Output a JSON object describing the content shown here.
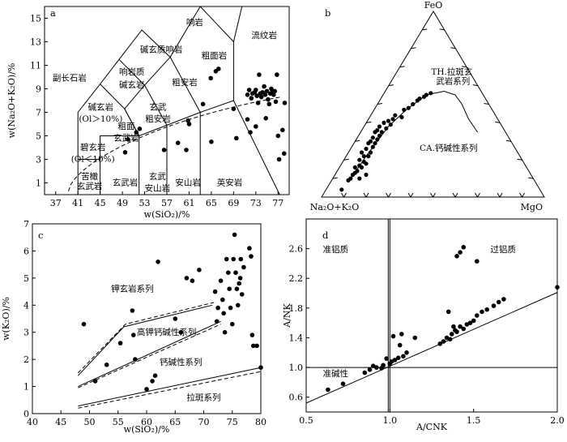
{
  "chart_data": [
    {
      "panel": "a",
      "type": "scatter",
      "xlabel": "w(SiO₂)/%",
      "ylabel": "w(Na₂O+K₂O)/%",
      "xlim": [
        35,
        79
      ],
      "ylim": [
        0,
        16
      ],
      "xticks": [
        "37",
        "41",
        "45",
        "49",
        "53",
        "57",
        "61",
        "65",
        "69",
        "73",
        "77"
      ],
      "yticks": [
        "1",
        "3",
        "5",
        "7",
        "9",
        "11",
        "13",
        "15"
      ],
      "fields": [
        {
          "label": "响岩",
          "x": 62,
          "y": 14.4
        },
        {
          "label": "碱玄质响岩",
          "x": 56,
          "y": 12.1
        },
        {
          "label": "粗面岩",
          "x": 65.5,
          "y": 11.6
        },
        {
          "label": "流纹岩",
          "x": 74.5,
          "y": 13.3
        },
        {
          "label": "副长石岩",
          "x": 39.5,
          "y": 9.7
        },
        {
          "label": "响岩质",
          "x": 50.7,
          "y": 10.2
        },
        {
          "label": "碱玄岩",
          "x": 50.7,
          "y": 9.1
        },
        {
          "label": "粗安岩",
          "x": 60.2,
          "y": 9.3
        },
        {
          "label": "碱玄岩",
          "x": 45.1,
          "y": 7.2
        },
        {
          "label": "(Ol＞10%)",
          "x": 45.1,
          "y": 6.2
        },
        {
          "label": "玄武",
          "x": 55.4,
          "y": 7.2
        },
        {
          "label": "粗安岩",
          "x": 55.4,
          "y": 6.2
        },
        {
          "label": "粗面",
          "x": 49.7,
          "y": 5.6
        },
        {
          "label": "玄武岩",
          "x": 49.7,
          "y": 4.6
        },
        {
          "label": "碧玄岩",
          "x": 43.7,
          "y": 3.8
        },
        {
          "label": "(Ol＜10%)",
          "x": 43.7,
          "y": 2.8
        },
        {
          "label": "苦橄",
          "x": 43.1,
          "y": 1.3
        },
        {
          "label": "玄武岩",
          "x": 43.1,
          "y": 0.5
        },
        {
          "label": "玄武岩",
          "x": 49.5,
          "y": 0.8
        },
        {
          "label": "玄武",
          "x": 55.3,
          "y": 1.3
        },
        {
          "label": "安山岩",
          "x": 55.3,
          "y": 0.3
        },
        {
          "label": "安山岩",
          "x": 60.8,
          "y": 0.8
        },
        {
          "label": "英安岩",
          "x": 68.3,
          "y": 0.8
        }
      ],
      "points": [
        [
          49.5,
          3.6
        ],
        [
          50,
          4.7
        ],
        [
          51.5,
          5.3
        ],
        [
          52.1,
          5.6
        ],
        [
          56.5,
          3.8
        ],
        [
          59,
          4.4
        ],
        [
          60.5,
          3.8
        ],
        [
          60.8,
          6.3
        ],
        [
          61,
          6.0
        ],
        [
          63.5,
          7.7
        ],
        [
          64.9,
          9.9
        ],
        [
          65.8,
          10.5
        ],
        [
          66.3,
          10.7
        ],
        [
          65,
          4.5
        ],
        [
          69,
          7.3
        ],
        [
          69.5,
          4.8
        ],
        [
          71.5,
          8.5
        ],
        [
          71.5,
          6.4
        ],
        [
          71.8,
          8.9
        ],
        [
          72,
          5.3
        ],
        [
          72.2,
          8.2
        ],
        [
          72.4,
          8.6
        ],
        [
          72.8,
          8.7
        ],
        [
          73.0,
          8.9
        ],
        [
          73.2,
          8.4
        ],
        [
          73.4,
          7.8
        ],
        [
          73.6,
          10.2
        ],
        [
          73.8,
          8.6
        ],
        [
          74.0,
          8.3
        ],
        [
          74.2,
          8.7
        ],
        [
          74.5,
          9.2
        ],
        [
          74.7,
          8.5
        ],
        [
          75.0,
          8.8
        ],
        [
          75.2,
          8.1
        ],
        [
          75.4,
          7.7
        ],
        [
          75.6,
          8.6
        ],
        [
          75.8,
          9.0
        ],
        [
          76.0,
          8.7
        ],
        [
          76.2,
          8.5
        ],
        [
          76.4,
          8.8
        ],
        [
          76.6,
          7.9
        ],
        [
          76.8,
          10.2
        ],
        [
          77.0,
          5.0
        ],
        [
          77.2,
          3.0
        ],
        [
          77.8,
          5.5
        ],
        [
          78.1,
          3.5
        ],
        [
          78.2,
          7.8
        ],
        [
          74.8,
          6.5
        ],
        [
          73.0,
          5.8
        ]
      ]
    },
    {
      "panel": "b",
      "type": "scatter",
      "apex_top": "FeO",
      "apex_left": "Na₂O+K₂O",
      "apex_right": "MgO",
      "fields": [
        {
          "label": "TH.拉斑玄",
          "u": 0.585,
          "v": 0.66
        },
        {
          "label": "武岩系列",
          "u": 0.59,
          "v": 0.61
        },
        {
          "label": "CA.钙碱性系列",
          "u": 0.57,
          "v": 0.25
        }
      ],
      "points": [
        [
          0.09,
          0.04
        ],
        [
          0.12,
          0.09
        ],
        [
          0.13,
          0.1
        ],
        [
          0.14,
          0.12
        ],
        [
          0.15,
          0.13
        ],
        [
          0.15,
          0.16
        ],
        [
          0.16,
          0.14
        ],
        [
          0.17,
          0.17
        ],
        [
          0.17,
          0.2
        ],
        [
          0.18,
          0.16
        ],
        [
          0.18,
          0.24
        ],
        [
          0.19,
          0.19
        ],
        [
          0.19,
          0.22
        ],
        [
          0.2,
          0.18
        ],
        [
          0.2,
          0.26
        ],
        [
          0.21,
          0.22
        ],
        [
          0.21,
          0.29
        ],
        [
          0.22,
          0.24
        ],
        [
          0.22,
          0.3
        ],
        [
          0.23,
          0.27
        ],
        [
          0.23,
          0.32
        ],
        [
          0.24,
          0.29
        ],
        [
          0.24,
          0.35
        ],
        [
          0.25,
          0.31
        ],
        [
          0.25,
          0.36
        ],
        [
          0.26,
          0.33
        ],
        [
          0.26,
          0.38
        ],
        [
          0.27,
          0.35
        ],
        [
          0.28,
          0.4
        ],
        [
          0.29,
          0.37
        ],
        [
          0.3,
          0.41
        ],
        [
          0.31,
          0.39
        ],
        [
          0.32,
          0.42
        ],
        [
          0.33,
          0.44
        ],
        [
          0.36,
          0.43
        ],
        [
          0.37,
          0.47
        ],
        [
          0.39,
          0.48
        ],
        [
          0.41,
          0.5
        ],
        [
          0.43,
          0.52
        ],
        [
          0.44,
          0.53
        ],
        [
          0.46,
          0.54
        ],
        [
          0.47,
          0.55
        ],
        [
          0.49,
          0.56
        ],
        [
          0.17,
          0.1
        ],
        [
          0.2,
          0.12
        ]
      ]
    },
    {
      "panel": "c",
      "type": "scatter",
      "xlabel": "w(SiO₂)/%",
      "ylabel": "w(K₂O)/%",
      "xlim": [
        40,
        80
      ],
      "ylim": [
        0,
        7
      ],
      "xticks": [
        "40",
        "45",
        "50",
        "55",
        "60",
        "65",
        "70",
        "75",
        "80"
      ],
      "yticks": [
        "0",
        "1",
        "2",
        "3",
        "4",
        "5",
        "6",
        "7"
      ],
      "fields": [
        {
          "label": "钾玄岩系列",
          "x": 57.5,
          "y": 4.5
        },
        {
          "label": "高钾钙碱性系列",
          "x": 63.5,
          "y": 2.9
        },
        {
          "label": "钙碱性系列",
          "x": 66,
          "y": 1.8
        },
        {
          "label": "拉斑系列",
          "x": 70,
          "y": 0.5
        }
      ],
      "points": [
        [
          49,
          3.3
        ],
        [
          51,
          1.2
        ],
        [
          53,
          1.8
        ],
        [
          57.5,
          3.8
        ],
        [
          57.7,
          2.9
        ],
        [
          58,
          2.0
        ],
        [
          60,
          0.9
        ],
        [
          61,
          1.2
        ],
        [
          61.5,
          1.4
        ],
        [
          62,
          5.6
        ],
        [
          65,
          3.5
        ],
        [
          66,
          3.0
        ],
        [
          67,
          5.0
        ],
        [
          68,
          4.9
        ],
        [
          69.2,
          5.3
        ],
        [
          72,
          4.5
        ],
        [
          72.3,
          3.4
        ],
        [
          72.5,
          3.9
        ],
        [
          73,
          4.9
        ],
        [
          73.3,
          4.2
        ],
        [
          73.5,
          3.7
        ],
        [
          73.7,
          3.0
        ],
        [
          74,
          5.7
        ],
        [
          74.3,
          5.2
        ],
        [
          74.5,
          4.6
        ],
        [
          74.7,
          3.9
        ],
        [
          75.0,
          3.3
        ],
        [
          75.2,
          5.7
        ],
        [
          75.4,
          6.6
        ],
        [
          75.6,
          5.2
        ],
        [
          75.8,
          4.6
        ],
        [
          76.0,
          4.0
        ],
        [
          76.2,
          4.8
        ],
        [
          76.4,
          5.0
        ],
        [
          76.5,
          5.7
        ],
        [
          76.7,
          4.4
        ],
        [
          77.0,
          5.4
        ],
        [
          78.0,
          6.1
        ],
        [
          78.3,
          5.8
        ],
        [
          78.5,
          2.9
        ],
        [
          78.7,
          2.5
        ],
        [
          80,
          1.7
        ],
        [
          55.4,
          2.6
        ],
        [
          79.3,
          2.5
        ]
      ]
    },
    {
      "panel": "d",
      "type": "scatter",
      "xlabel": "A/CNK",
      "ylabel": "A/NK",
      "xlim": [
        0.5,
        2.0
      ],
      "ylim": [
        0.4,
        3.0
      ],
      "xticks": [
        "0.5",
        "1.0",
        "1.5",
        "2.0"
      ],
      "yticks": [
        "0.6",
        "1.0",
        "1.4",
        "1.8",
        "2.2",
        "2.6"
      ],
      "fields": [
        {
          "label": "准铝质",
          "x": 0.6,
          "y": 2.55
        },
        {
          "label": "过铝质",
          "x": 1.6,
          "y": 2.55
        },
        {
          "label": "准碱性",
          "x": 0.6,
          "y": 0.88
        }
      ],
      "points": [
        [
          0.63,
          0.7
        ],
        [
          0.72,
          0.78
        ],
        [
          0.85,
          0.93
        ],
        [
          0.88,
          0.97
        ],
        [
          0.9,
          1.02
        ],
        [
          0.92,
          1.0
        ],
        [
          0.95,
          0.99
        ],
        [
          0.96,
          1.03
        ],
        [
          0.98,
          1.12
        ],
        [
          1.0,
          1.05
        ],
        [
          1.01,
          1.08
        ],
        [
          1.02,
          1.42
        ],
        [
          1.03,
          1.1
        ],
        [
          1.05,
          1.13
        ],
        [
          1.06,
          1.3
        ],
        [
          1.07,
          1.45
        ],
        [
          1.08,
          1.15
        ],
        [
          1.1,
          1.2
        ],
        [
          1.15,
          1.4
        ],
        [
          1.3,
          1.32
        ],
        [
          1.32,
          1.35
        ],
        [
          1.34,
          1.4
        ],
        [
          1.36,
          1.38
        ],
        [
          1.37,
          1.45
        ],
        [
          1.39,
          1.5
        ],
        [
          1.4,
          1.48
        ],
        [
          1.42,
          1.55
        ],
        [
          1.44,
          1.52
        ],
        [
          1.46,
          1.58
        ],
        [
          1.48,
          1.6
        ],
        [
          1.5,
          1.63
        ],
        [
          1.52,
          1.7
        ],
        [
          1.55,
          1.75
        ],
        [
          1.58,
          1.78
        ],
        [
          1.62,
          1.83
        ],
        [
          1.65,
          1.88
        ],
        [
          1.68,
          1.92
        ],
        [
          1.4,
          2.5
        ],
        [
          1.42,
          2.55
        ],
        [
          1.44,
          2.62
        ],
        [
          1.52,
          2.43
        ],
        [
          2.0,
          2.08
        ],
        [
          1.35,
          1.75
        ],
        [
          1.38,
          1.55
        ]
      ]
    }
  ]
}
